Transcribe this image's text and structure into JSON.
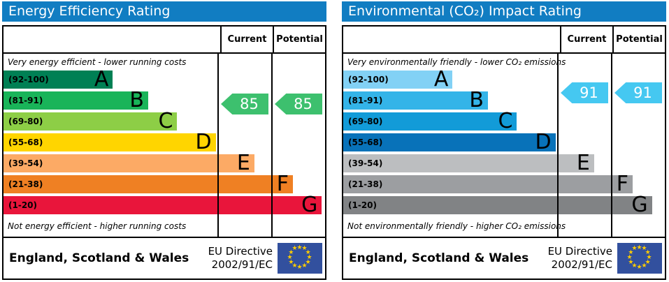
{
  "colors": {
    "header_bg": "#117dc2",
    "border": "#000000",
    "eu_flag_bg": "#32509e",
    "eu_star": "#ffcc00",
    "energy_arrow": "#3dc06e",
    "co2_arrow": "#45c8f1"
  },
  "panels": [
    {
      "title": "Energy Efficiency Rating",
      "caption_top": "Very energy efficient - lower running costs",
      "caption_bottom": "Not energy efficient - higher running costs",
      "columns": {
        "current": "Current",
        "potential": "Potential"
      },
      "bands": [
        {
          "range": "(92-100)",
          "letter": "A",
          "low": 92,
          "high": 100,
          "color": "#008054",
          "width_pct": 34
        },
        {
          "range": "(81-91)",
          "letter": "B",
          "low": 81,
          "high": 91,
          "color": "#19b459",
          "width_pct": 45
        },
        {
          "range": "(69-80)",
          "letter": "C",
          "low": 69,
          "high": 80,
          "color": "#8dce46",
          "width_pct": 54
        },
        {
          "range": "(55-68)",
          "letter": "D",
          "low": 55,
          "high": 68,
          "color": "#ffd500",
          "width_pct": 66
        },
        {
          "range": "(39-54)",
          "letter": "E",
          "low": 39,
          "high": 54,
          "color": "#fcaa65",
          "width_pct": 78
        },
        {
          "range": "(21-38)",
          "letter": "F",
          "low": 21,
          "high": 38,
          "color": "#ef8023",
          "width_pct": 90
        },
        {
          "range": "(1-20)",
          "letter": "G",
          "low": 1,
          "high": 20,
          "color": "#e9153b",
          "width_pct": 99
        }
      ],
      "current": {
        "value": 85,
        "color": "#3dc06e"
      },
      "potential": {
        "value": 85,
        "color": "#3dc06e"
      },
      "footer": {
        "region": "England, Scotland & Wales",
        "directive_line1": "EU Directive",
        "directive_line2": "2002/91/EC"
      }
    },
    {
      "title": "Environmental (CO₂) Impact Rating",
      "caption_top": "Very environmentally friendly - lower CO₂ emissions",
      "caption_bottom": "Not environmentally friendly - higher CO₂ emissions",
      "columns": {
        "current": "Current",
        "potential": "Potential"
      },
      "bands": [
        {
          "range": "(92-100)",
          "letter": "A",
          "low": 92,
          "high": 100,
          "color": "#82d1f5",
          "width_pct": 34
        },
        {
          "range": "(81-91)",
          "letter": "B",
          "low": 81,
          "high": 91,
          "color": "#34b4e8",
          "width_pct": 45
        },
        {
          "range": "(69-80)",
          "letter": "C",
          "low": 69,
          "high": 80,
          "color": "#129bd8",
          "width_pct": 54
        },
        {
          "range": "(55-68)",
          "letter": "D",
          "low": 55,
          "high": 68,
          "color": "#0872b9",
          "width_pct": 66
        },
        {
          "range": "(39-54)",
          "letter": "E",
          "low": 39,
          "high": 54,
          "color": "#bcbec0",
          "width_pct": 78
        },
        {
          "range": "(21-38)",
          "letter": "F",
          "low": 21,
          "high": 38,
          "color": "#9c9ea1",
          "width_pct": 90
        },
        {
          "range": "(1-20)",
          "letter": "G",
          "low": 1,
          "high": 20,
          "color": "#818385",
          "width_pct": 96
        }
      ],
      "current": {
        "value": 91,
        "color": "#45c8f1"
      },
      "potential": {
        "value": 91,
        "color": "#45c8f1"
      },
      "footer": {
        "region": "England, Scotland & Wales",
        "directive_line1": "EU Directive",
        "directive_line2": "2002/91/EC"
      }
    }
  ],
  "chart_data": [
    {
      "type": "bar",
      "title": "Energy Efficiency Rating",
      "categories": [
        "A (92-100)",
        "B (81-91)",
        "C (69-80)",
        "D (55-68)",
        "E (39-54)",
        "F (21-38)",
        "G (1-20)"
      ],
      "series": [
        {
          "name": "Current",
          "values": [
            85
          ]
        },
        {
          "name": "Potential",
          "values": [
            85
          ]
        }
      ],
      "ylim": [
        1,
        100
      ],
      "legend_position": "top-right-columns",
      "annotations": [
        "Very energy efficient - lower running costs",
        "Not energy efficient - higher running costs",
        "England, Scotland & Wales",
        "EU Directive 2002/91/EC"
      ]
    },
    {
      "type": "bar",
      "title": "Environmental (CO₂) Impact Rating",
      "categories": [
        "A (92-100)",
        "B (81-91)",
        "C (69-80)",
        "D (55-68)",
        "E (39-54)",
        "F (21-38)",
        "G (1-20)"
      ],
      "series": [
        {
          "name": "Current",
          "values": [
            91
          ]
        },
        {
          "name": "Potential",
          "values": [
            91
          ]
        }
      ],
      "ylim": [
        1,
        100
      ],
      "legend_position": "top-right-columns",
      "annotations": [
        "Very environmentally friendly - lower CO₂ emissions",
        "Not environmentally friendly - higher CO₂ emissions",
        "England, Scotland & Wales",
        "EU Directive 2002/91/EC"
      ]
    }
  ]
}
